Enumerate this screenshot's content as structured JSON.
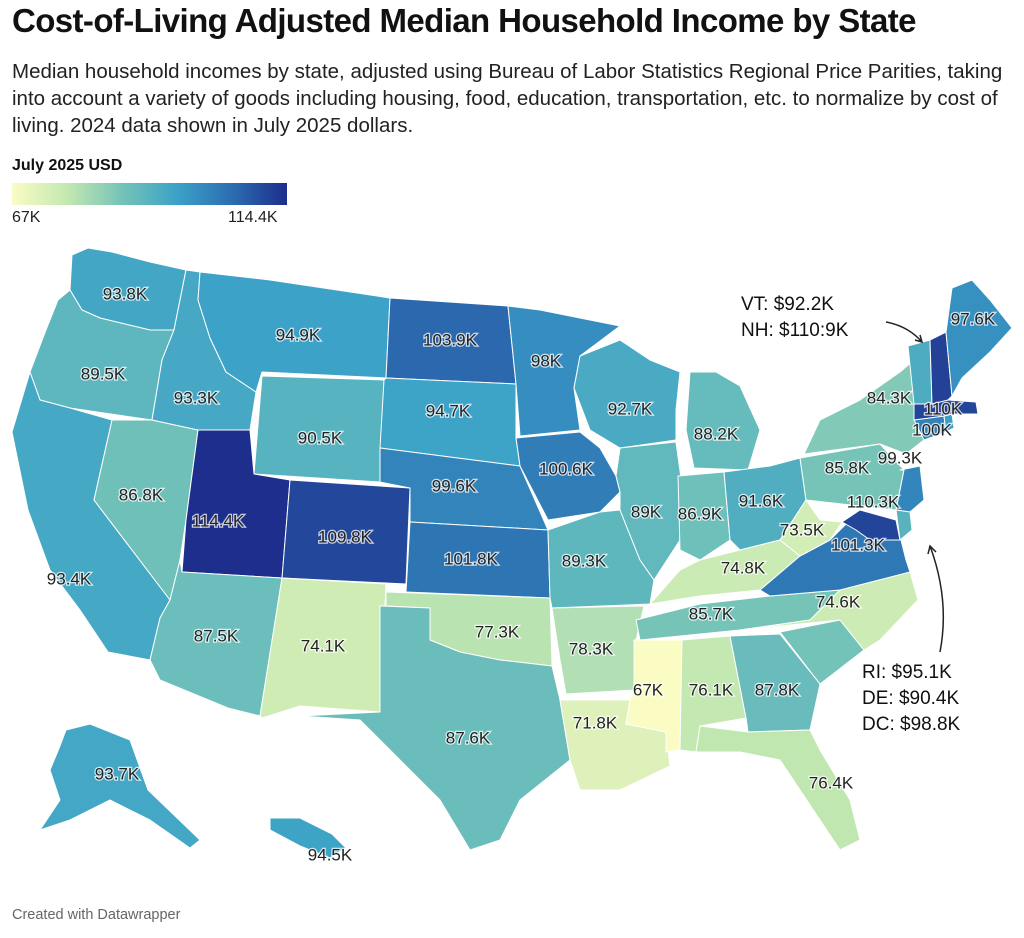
{
  "title": "Cost-of-Living Adjusted Median Household Income by State",
  "description": "Median household incomes by state, adjusted using Bureau of Labor Statistics Regional Price Parities, taking into account a variety of goods including housing, food, education, transportation, etc. to normalize by cost of living. 2024 data shown in July 2025 dollars.",
  "legend": {
    "title": "July 2025 USD",
    "min_label": "67K",
    "max_label": "114.4K",
    "min": 67.0,
    "max": 114.4
  },
  "colors": {
    "low": "#fbfbc4",
    "high": "#1d2e8c"
  },
  "annotations": {
    "ne_1": "VT: $92.2K",
    "ne_2": "NH: $110:9K",
    "se_1": "RI: $95.1K",
    "se_2": "DE: $90.4K",
    "se_3": "DC: $98.8K"
  },
  "footer": "Created with Datawrapper",
  "chart_data": {
    "type": "choropleth",
    "unit": "K USD (July 2025 dollars)",
    "states": {
      "WA": {
        "label": "93.8K",
        "value": 93.8
      },
      "OR": {
        "label": "89.5K",
        "value": 89.5
      },
      "CA": {
        "label": "93.4K",
        "value": 93.4
      },
      "NV": {
        "label": "86.8K",
        "value": 86.8
      },
      "ID": {
        "label": "93.3K",
        "value": 93.3
      },
      "MT": {
        "label": "94.9K",
        "value": 94.9
      },
      "WY": {
        "label": "90.5K",
        "value": 90.5
      },
      "UT": {
        "label": "114.4K",
        "value": 114.4
      },
      "CO": {
        "label": "109.8K",
        "value": 109.8
      },
      "AZ": {
        "label": "87.5K",
        "value": 87.5
      },
      "NM": {
        "label": "74.1K",
        "value": 74.1
      },
      "ND": {
        "label": "103.9K",
        "value": 103.9
      },
      "SD": {
        "label": "94.7K",
        "value": 94.7
      },
      "NE": {
        "label": "99.6K",
        "value": 99.6
      },
      "KS": {
        "label": "101.8K",
        "value": 101.8
      },
      "OK": {
        "label": "77.3K",
        "value": 77.3
      },
      "TX": {
        "label": "87.6K",
        "value": 87.6
      },
      "MN": {
        "label": "98K",
        "value": 98.0
      },
      "IA": {
        "label": "100.6K",
        "value": 100.6
      },
      "MO": {
        "label": "89.3K",
        "value": 89.3
      },
      "AR": {
        "label": "78.3K",
        "value": 78.3
      },
      "LA": {
        "label": "71.8K",
        "value": 71.8
      },
      "WI": {
        "label": "92.7K",
        "value": 92.7
      },
      "IL": {
        "label": "89K",
        "value": 89.0
      },
      "MI": {
        "label": "88.2K",
        "value": 88.2
      },
      "IN": {
        "label": "86.9K",
        "value": 86.9
      },
      "OH": {
        "label": "91.6K",
        "value": 91.6
      },
      "KY": {
        "label": "74.8K",
        "value": 74.8
      },
      "TN": {
        "label": "85.7K",
        "value": 85.7
      },
      "MS": {
        "label": "67K",
        "value": 67.0
      },
      "AL": {
        "label": "76.1K",
        "value": 76.1
      },
      "GA": {
        "label": "87.8K",
        "value": 87.8
      },
      "FL": {
        "label": "76.4K",
        "value": 76.4
      },
      "SC": {
        "label": "",
        "value": null
      },
      "NC": {
        "label": "74.6K",
        "value": 74.6
      },
      "VA": {
        "label": "101.3K",
        "value": 101.3
      },
      "WV": {
        "label": "73.5K",
        "value": 73.5
      },
      "PA": {
        "label": "85.8K",
        "value": 85.8
      },
      "NY": {
        "label": "84.3K",
        "value": 84.3
      },
      "NJ": {
        "label": "99.3K",
        "value": 99.3
      },
      "MD": {
        "label": "110.3K",
        "value": 110.3
      },
      "DE": {
        "label": "",
        "value": 90.4
      },
      "CT": {
        "label": "100K",
        "value": 100.0
      },
      "RI": {
        "label": "",
        "value": 95.1
      },
      "MA": {
        "label": "110K",
        "value": 110.0
      },
      "VT": {
        "label": "",
        "value": 92.2
      },
      "NH": {
        "label": "",
        "value": 110.9
      },
      "ME": {
        "label": "97.6K",
        "value": 97.6
      },
      "AK": {
        "label": "93.7K",
        "value": 93.7
      },
      "HI": {
        "label": "94.5K",
        "value": 94.5
      }
    }
  }
}
